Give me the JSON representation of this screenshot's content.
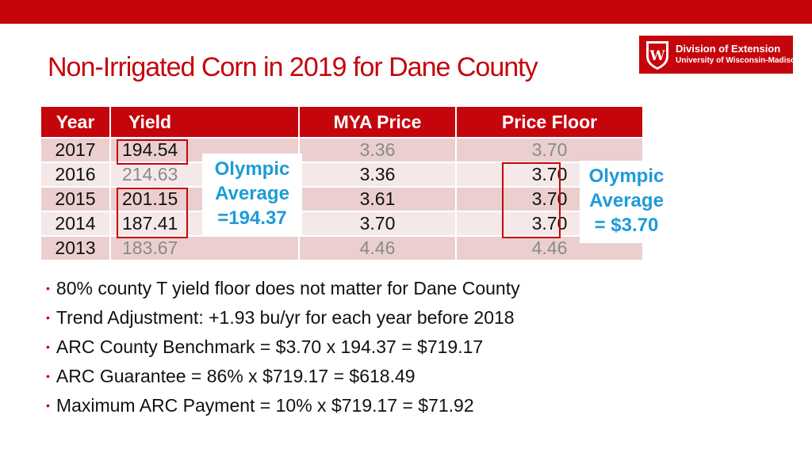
{
  "slide": {
    "title": "Non-Irrigated Corn in 2019 for Dane County"
  },
  "logo": {
    "line1": "Division of Extension",
    "line2": "University of Wisconsin-Madison",
    "icon": "uw-crest-icon"
  },
  "table": {
    "headers": {
      "year": "Year",
      "yield": "Yield",
      "mya": "MYA Price",
      "floor": "Price Floor"
    },
    "rows": [
      {
        "year": "2017",
        "yield": "194.54",
        "mya": "3.36",
        "floor": "3.70"
      },
      {
        "year": "2016",
        "yield": "214.63",
        "mya": "3.36",
        "floor": "3.70"
      },
      {
        "year": "2015",
        "yield": "201.15",
        "mya": "3.61",
        "floor": "3.70"
      },
      {
        "year": "2014",
        "yield": "187.41",
        "mya": "3.70",
        "floor": "3.70"
      },
      {
        "year": "2013",
        "yield": "183.67",
        "mya": "4.46",
        "floor": "4.46"
      }
    ]
  },
  "callouts": {
    "yield": {
      "line1": "Olympic",
      "line2": "Average",
      "line3": "=194.37"
    },
    "price": {
      "line1": "Olympic",
      "line2": "Average",
      "line3": "= $3.70"
    }
  },
  "bullets": [
    "80% county T yield floor does not matter for Dane County",
    "Trend Adjustment: +1.93 bu/yr for each year before 2018",
    "ARC County Benchmark =  $3.70 x 194.37 = $719.17",
    "ARC Guarantee = 86% x $719.17 = $618.49",
    "Maximum ARC Payment = 10% x $719.17 = $71.92"
  ],
  "colors": {
    "accent": "#c5050c",
    "callout": "#1e9bd7",
    "row_odd": "#ebcfcf",
    "row_even": "#f5e8e8"
  }
}
